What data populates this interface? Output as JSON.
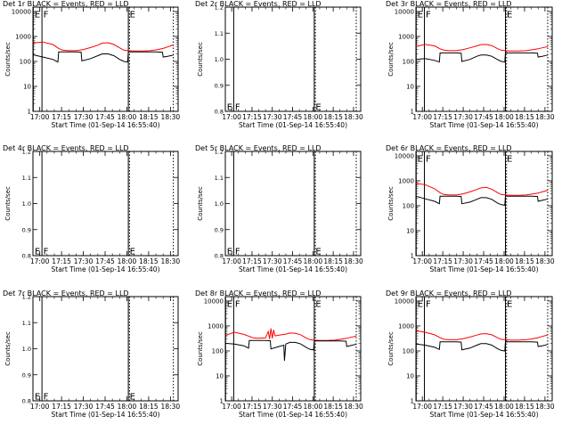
{
  "colors": {
    "events": "#000000",
    "lld": "#ff0000",
    "axes": "#000000",
    "background": "#ffffff"
  },
  "x_ticks": [
    "17:00",
    "17:15",
    "17:30",
    "17:45",
    "18:00",
    "18:15",
    "18:30"
  ],
  "x_tick_minutes": [
    0,
    15,
    30,
    45,
    60,
    75,
    90
  ],
  "x_range_minutes": [
    -4.7,
    95.3
  ],
  "xlabel": "Start Time (01-Sep-14 16:55:40)",
  "ylabel": "Counts/sec",
  "log_tick_labels": [
    "1",
    "10",
    "100",
    "1000",
    "10000"
  ],
  "flare_labels": [
    "E",
    "F"
  ],
  "chart_data": [
    {
      "type": "line",
      "title": "Det 1r BLACK = Events, RED = LLD",
      "ylim": [
        1,
        15000
      ],
      "y_scale": "log",
      "has_data": true,
      "vlines_solid": [
        -4.5,
        1.5,
        61.0
      ],
      "vlines_dotted": [
        61.8,
        92.0
      ],
      "marks": [
        {
          "text": "E",
          "x": -4.2,
          "y_frac": 0.97
        },
        {
          "text": "F",
          "x": 1.8,
          "y_frac": 0.97
        },
        {
          "text": "E",
          "x": 61.3,
          "y_frac": 0.97
        }
      ],
      "series": [
        {
          "color": "#ff0000",
          "x": [
            -4.5,
            2,
            9,
            13,
            16,
            20,
            25,
            30,
            35,
            40,
            43,
            47,
            51,
            55,
            58,
            61,
            65,
            70,
            76,
            80,
            85,
            88,
            91,
            92
          ],
          "y": [
            550,
            600,
            480,
            330,
            280,
            270,
            270,
            300,
            360,
            450,
            540,
            560,
            480,
            350,
            280,
            270,
            260,
            260,
            270,
            290,
            330,
            380,
            440,
            460
          ]
        },
        {
          "color": "#000000",
          "x": [
            -4.5,
            2,
            9,
            12.5,
            13,
            16,
            20,
            25,
            28.5,
            29,
            35,
            40,
            43,
            47,
            51,
            55,
            58,
            60.5,
            61,
            65,
            70,
            76,
            80,
            84.5,
            85,
            88,
            91,
            92
          ],
          "y": [
            185,
            150,
            120,
            95,
            240,
            240,
            240,
            240,
            235,
            105,
            130,
            170,
            200,
            200,
            170,
            120,
            100,
            95,
            240,
            240,
            240,
            240,
            240,
            235,
            150,
            160,
            175,
            180
          ]
        }
      ]
    },
    {
      "type": "line",
      "title": "Det 2r BLACK = Events, RED = LLD",
      "ylim": [
        0.8,
        1.2
      ],
      "y_scale": "linear",
      "has_data": false,
      "yticks": [
        0.8,
        0.9,
        1.0,
        1.1,
        1.2
      ],
      "vlines_solid": [
        1.5,
        61.0
      ],
      "vlines_dotted": [
        61.8,
        92.0
      ],
      "marks": [
        {
          "text": "E",
          "x": -4.2,
          "y_frac": 0.08
        },
        {
          "text": "F",
          "x": 1.8,
          "y_frac": 0.08
        },
        {
          "text": "E",
          "x": 61.3,
          "y_frac": 0.08
        }
      ],
      "series": []
    },
    {
      "type": "line",
      "title": "Det 3r BLACK = Events, RED = LLD",
      "ylim": [
        1,
        15000
      ],
      "y_scale": "log",
      "has_data": true,
      "vlines_solid": [
        -4.5,
        1.5,
        61.0
      ],
      "vlines_dotted": [
        61.8,
        92.0
      ],
      "marks": [
        {
          "text": "E",
          "x": -4.2,
          "y_frac": 0.97
        },
        {
          "text": "F",
          "x": 1.8,
          "y_frac": 0.97
        },
        {
          "text": "E",
          "x": 61.3,
          "y_frac": 0.97
        }
      ],
      "series": [
        {
          "color": "#ff0000",
          "x": [
            -4.5,
            2,
            9,
            13,
            16,
            20,
            25,
            30,
            35,
            40,
            43,
            47,
            51,
            55,
            58,
            61,
            65,
            70,
            76,
            80,
            85,
            88,
            91,
            92
          ],
          "y": [
            400,
            480,
            420,
            320,
            280,
            270,
            270,
            300,
            350,
            420,
            470,
            480,
            430,
            330,
            280,
            270,
            260,
            260,
            270,
            290,
            320,
            350,
            380,
            400
          ]
        },
        {
          "color": "#000000",
          "x": [
            -4.5,
            2,
            9,
            12.5,
            13,
            16,
            20,
            25,
            28.5,
            29,
            35,
            40,
            43,
            47,
            51,
            55,
            58,
            60.5,
            61,
            65,
            70,
            76,
            80,
            84.5,
            85,
            88,
            91,
            92
          ],
          "y": [
            120,
            130,
            110,
            95,
            220,
            220,
            220,
            220,
            215,
            100,
            120,
            160,
            180,
            180,
            160,
            120,
            100,
            95,
            220,
            220,
            220,
            220,
            220,
            215,
            150,
            160,
            175,
            180
          ]
        }
      ]
    },
    {
      "type": "line",
      "title": "Det 4r BLACK = Events, RED = LLD",
      "ylim": [
        0.8,
        1.2
      ],
      "y_scale": "linear",
      "has_data": false,
      "yticks": [
        0.8,
        0.9,
        1.0,
        1.1,
        1.2
      ],
      "vlines_solid": [
        1.5,
        61.0
      ],
      "vlines_dotted": [
        61.8,
        92.0
      ],
      "marks": [
        {
          "text": "E",
          "x": -4.2,
          "y_frac": 0.08
        },
        {
          "text": "F",
          "x": 1.8,
          "y_frac": 0.08
        },
        {
          "text": "E",
          "x": 61.3,
          "y_frac": 0.08
        }
      ],
      "series": []
    },
    {
      "type": "line",
      "title": "Det 5r BLACK = Events, RED = LLD",
      "ylim": [
        0.8,
        1.2
      ],
      "y_scale": "linear",
      "has_data": false,
      "yticks": [
        0.8,
        0.9,
        1.0,
        1.1,
        1.2
      ],
      "vlines_solid": [
        1.5,
        61.0
      ],
      "vlines_dotted": [
        61.8,
        92.0
      ],
      "marks": [
        {
          "text": "E",
          "x": -4.2,
          "y_frac": 0.08
        },
        {
          "text": "F",
          "x": 1.8,
          "y_frac": 0.08
        },
        {
          "text": "E",
          "x": 61.3,
          "y_frac": 0.08
        }
      ],
      "series": []
    },
    {
      "type": "line",
      "title": "Det 6r BLACK = Events, RED = LLD",
      "ylim": [
        1,
        15000
      ],
      "y_scale": "log",
      "has_data": true,
      "vlines_solid": [
        -4.5,
        1.5,
        61.0
      ],
      "vlines_dotted": [
        61.8,
        92.0
      ],
      "marks": [
        {
          "text": "E",
          "x": -4.2,
          "y_frac": 0.97
        },
        {
          "text": "F",
          "x": 1.8,
          "y_frac": 0.97
        },
        {
          "text": "E",
          "x": 61.3,
          "y_frac": 0.97
        }
      ],
      "series": [
        {
          "color": "#ff0000",
          "x": [
            -4.5,
            2,
            9,
            13,
            16,
            20,
            25,
            30,
            35,
            40,
            43,
            47,
            51,
            55,
            58,
            61,
            65,
            70,
            76,
            80,
            85,
            88,
            91,
            92
          ],
          "y": [
            780,
            700,
            480,
            330,
            280,
            270,
            270,
            300,
            360,
            450,
            520,
            540,
            460,
            340,
            280,
            270,
            260,
            260,
            270,
            290,
            320,
            360,
            400,
            420
          ]
        },
        {
          "color": "#000000",
          "x": [
            -4.5,
            2,
            9,
            12.5,
            13,
            16,
            20,
            25,
            28.5,
            29,
            35,
            40,
            43,
            47,
            51,
            55,
            58,
            60.5,
            61,
            65,
            70,
            76,
            80,
            84.5,
            85,
            88,
            91,
            92
          ],
          "y": [
            240,
            190,
            150,
            120,
            240,
            240,
            240,
            240,
            235,
            120,
            140,
            180,
            210,
            210,
            180,
            130,
            110,
            105,
            240,
            240,
            240,
            240,
            240,
            235,
            150,
            165,
            180,
            190
          ]
        }
      ]
    },
    {
      "type": "line",
      "title": "Det 7r BLACK = Events, RED = LLD",
      "ylim": [
        0.8,
        1.2
      ],
      "y_scale": "linear",
      "has_data": false,
      "yticks": [
        0.8,
        0.9,
        1.0,
        1.1,
        1.2
      ],
      "vlines_solid": [
        1.5,
        61.0
      ],
      "vlines_dotted": [
        61.8,
        92.0
      ],
      "marks": [
        {
          "text": "E",
          "x": -4.2,
          "y_frac": 0.08
        },
        {
          "text": "F",
          "x": 1.8,
          "y_frac": 0.08
        },
        {
          "text": "E",
          "x": 61.3,
          "y_frac": 0.08
        }
      ],
      "series": []
    },
    {
      "type": "line",
      "title": "Det 8r BLACK = Events, RED = LLD",
      "ylim": [
        1,
        15000
      ],
      "y_scale": "log",
      "has_data": true,
      "vlines_solid": [
        -4.5,
        1.5,
        61.0
      ],
      "vlines_dotted": [
        61.8,
        92.0
      ],
      "marks": [
        {
          "text": "E",
          "x": -4.2,
          "y_frac": 0.97
        },
        {
          "text": "F",
          "x": 1.8,
          "y_frac": 0.97
        },
        {
          "text": "E",
          "x": 61.3,
          "y_frac": 0.97
        }
      ],
      "series": [
        {
          "color": "#ff0000",
          "x": [
            -4.5,
            2,
            9,
            13,
            16,
            20,
            25,
            27,
            28,
            29,
            30,
            31,
            32,
            35,
            40,
            43,
            47,
            51,
            55,
            58,
            61,
            65,
            70,
            76,
            80,
            85,
            88,
            91,
            92
          ],
          "y": [
            420,
            560,
            460,
            380,
            330,
            320,
            330,
            600,
            300,
            800,
            320,
            700,
            400,
            430,
            470,
            520,
            510,
            440,
            330,
            280,
            270,
            260,
            260,
            270,
            290,
            320,
            350,
            380,
            390
          ]
        },
        {
          "color": "#000000",
          "x": [
            -4.5,
            2,
            9,
            12.5,
            13,
            16,
            20,
            25,
            28.5,
            29,
            35,
            38.5,
            39,
            40,
            43,
            47,
            51,
            55,
            58,
            60.5,
            61,
            65,
            70,
            76,
            80,
            84.5,
            85,
            88,
            91,
            92
          ],
          "y": [
            200,
            190,
            160,
            130,
            260,
            260,
            260,
            260,
            255,
            120,
            150,
            170,
            40,
            190,
            220,
            220,
            190,
            140,
            115,
            110,
            250,
            250,
            250,
            250,
            250,
            245,
            150,
            165,
            180,
            190
          ]
        }
      ]
    },
    {
      "type": "line",
      "title": "Det 9r BLACK = Events, RED = LLD",
      "ylim": [
        1,
        15000
      ],
      "y_scale": "log",
      "has_data": true,
      "vlines_solid": [
        -4.5,
        1.5,
        61.0
      ],
      "vlines_dotted": [
        61.8,
        92.0
      ],
      "marks": [
        {
          "text": "E",
          "x": -4.2,
          "y_frac": 0.97
        },
        {
          "text": "F",
          "x": 1.8,
          "y_frac": 0.97
        },
        {
          "text": "E",
          "x": 61.3,
          "y_frac": 0.97
        }
      ],
      "series": [
        {
          "color": "#ff0000",
          "x": [
            -4.5,
            2,
            9,
            13,
            16,
            20,
            25,
            30,
            35,
            40,
            43,
            47,
            51,
            55,
            58,
            61,
            65,
            70,
            76,
            80,
            85,
            88,
            91,
            92
          ],
          "y": [
            640,
            560,
            440,
            340,
            290,
            280,
            280,
            310,
            360,
            430,
            480,
            490,
            440,
            340,
            290,
            280,
            270,
            270,
            280,
            300,
            340,
            380,
            420,
            440
          ]
        },
        {
          "color": "#000000",
          "x": [
            -4.5,
            2,
            9,
            12.5,
            13,
            16,
            20,
            25,
            28.5,
            29,
            35,
            40,
            43,
            47,
            51,
            55,
            58,
            60.5,
            61,
            65,
            70,
            76,
            80,
            84.5,
            85,
            88,
            91,
            92
          ],
          "y": [
            190,
            170,
            140,
            115,
            230,
            230,
            230,
            230,
            225,
            110,
            130,
            170,
            195,
            195,
            170,
            125,
            105,
            100,
            230,
            230,
            230,
            230,
            230,
            225,
            150,
            160,
            175,
            185
          ]
        }
      ]
    }
  ]
}
